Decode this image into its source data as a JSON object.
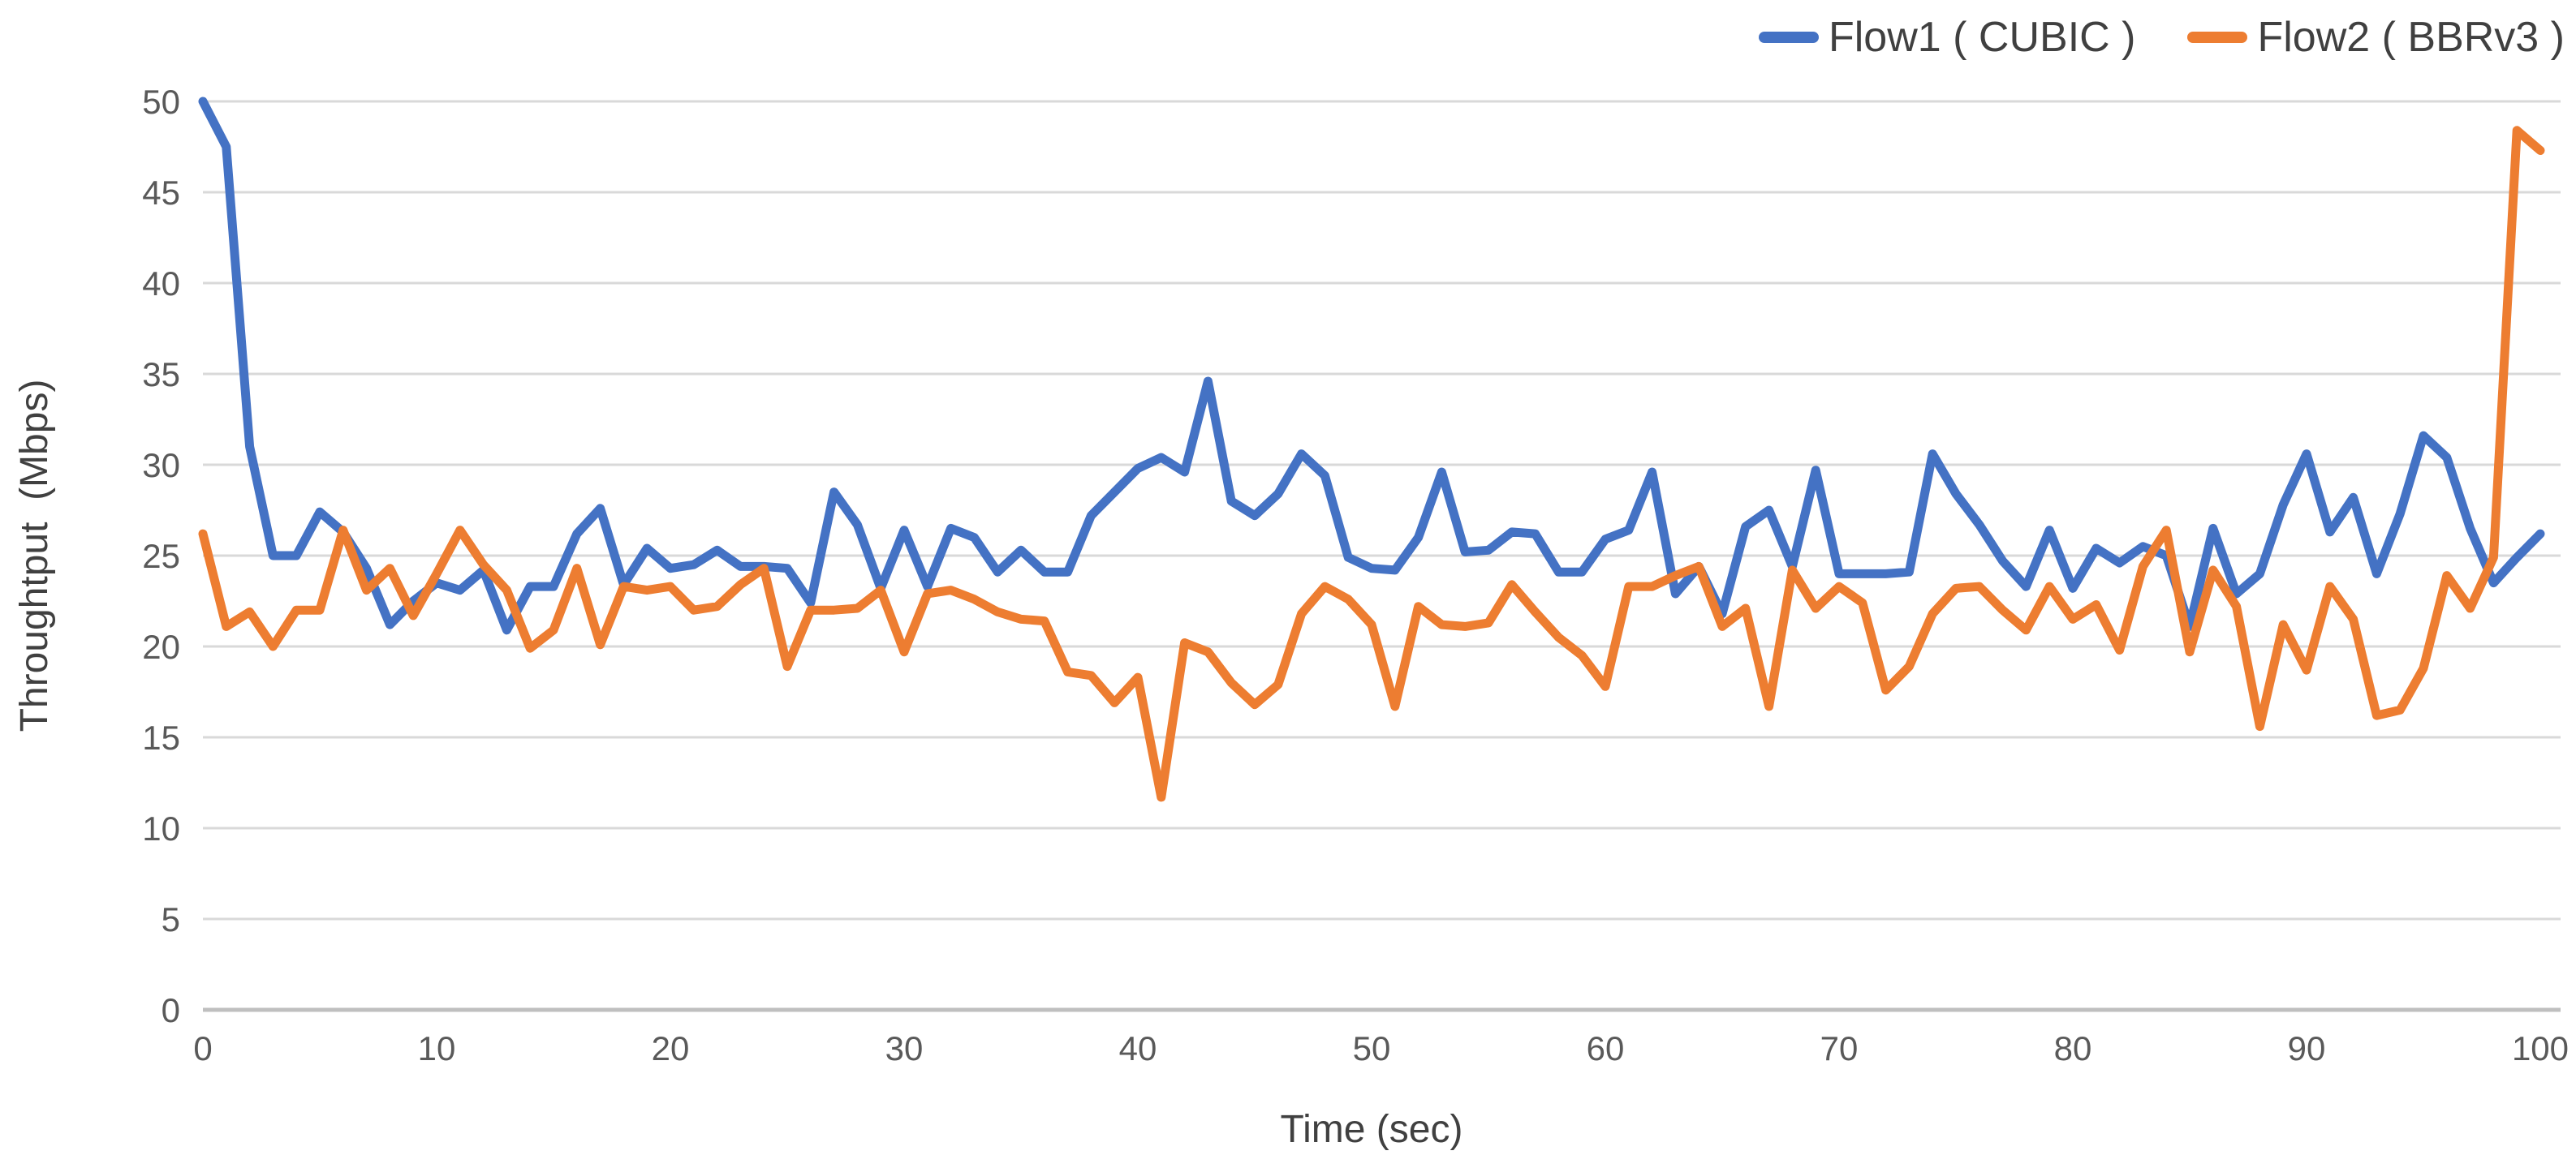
{
  "chart_data": {
    "type": "line",
    "title": "",
    "xlabel": "Time (sec)",
    "ylabel": "Throughtput  (Mbps)",
    "xlim": [
      0,
      100
    ],
    "ylim": [
      0,
      50
    ],
    "x_ticks": [
      0,
      10,
      20,
      30,
      40,
      50,
      60,
      70,
      80,
      90,
      100
    ],
    "y_ticks": [
      0,
      5,
      10,
      15,
      20,
      25,
      30,
      35,
      40,
      45,
      50
    ],
    "grid": "horizontal",
    "legend_position": "top-right",
    "x_start": 0,
    "x_step": 1,
    "series": [
      {
        "name": "Flow1 ( CUBIC )",
        "color": "#4472C4",
        "values": [
          50,
          47.5,
          31,
          25,
          25,
          27.4,
          26.3,
          24.3,
          21.2,
          22.5,
          23.5,
          23.1,
          24.2,
          20.9,
          23.3,
          23.3,
          26.2,
          27.6,
          23.4,
          25.4,
          24.3,
          24.5,
          25.3,
          24.4,
          24.4,
          24.3,
          22.4,
          28.5,
          26.7,
          23.2,
          26.4,
          23.3,
          26.5,
          26,
          24.1,
          25.3,
          24.1,
          24.1,
          27.2,
          28.5,
          29.8,
          30.4,
          29.6,
          34.6,
          28,
          27.2,
          28.4,
          30.6,
          29.4,
          24.9,
          24.3,
          24.2,
          26,
          29.6,
          25.2,
          25.3,
          26.3,
          26.2,
          24.1,
          24.1,
          25.9,
          26.4,
          29.6,
          22.9,
          24.4,
          21.8,
          26.6,
          27.5,
          24.4,
          29.7,
          24,
          24,
          24,
          24.1,
          30.6,
          28.4,
          26.7,
          24.7,
          23.3,
          26.4,
          23.2,
          25.4,
          24.6,
          25.5,
          25,
          21.1,
          26.5,
          22.9,
          24,
          27.8,
          30.6,
          26.3,
          28.2,
          24,
          27.3,
          31.6,
          30.4,
          26.5,
          23.5,
          24.9,
          26.2
        ]
      },
      {
        "name": "Flow2 ( BBRv3 )",
        "color": "#ED7D31",
        "values": [
          26.2,
          21.1,
          21.9,
          20,
          22,
          22,
          26.4,
          23.1,
          24.3,
          21.7,
          24,
          26.4,
          24.5,
          23.1,
          19.9,
          20.9,
          24.3,
          20.1,
          23.3,
          23.1,
          23.3,
          22,
          22.2,
          23.4,
          24.3,
          18.9,
          22,
          22,
          22.1,
          23.1,
          19.7,
          22.9,
          23.1,
          22.6,
          21.9,
          21.5,
          21.4,
          18.6,
          18.4,
          16.9,
          18.3,
          11.7,
          20.2,
          19.7,
          18,
          16.8,
          17.9,
          21.8,
          23.3,
          22.6,
          21.2,
          16.7,
          22.2,
          21.2,
          21.1,
          21.3,
          23.4,
          21.9,
          20.5,
          19.5,
          17.8,
          23.3,
          23.3,
          23.9,
          24.4,
          21.1,
          22.1,
          16.7,
          24.2,
          22.1,
          23.3,
          22.4,
          17.6,
          18.9,
          21.8,
          23.2,
          23.3,
          22,
          20.9,
          23.3,
          21.5,
          22.3,
          19.8,
          24.4,
          26.4,
          19.7,
          24.2,
          22.2,
          15.6,
          21.2,
          18.7,
          23.3,
          21.5,
          16.2,
          16.5,
          18.8,
          23.9,
          22.1,
          24.9,
          48.4,
          47.3
        ]
      }
    ]
  },
  "colors": {
    "background": "#FFFFFF",
    "gridline": "#D9D9D9",
    "axis_line": "#BFBFBF",
    "tick_label": "#595959",
    "axis_title": "#404040",
    "legend_text": "#404040"
  }
}
